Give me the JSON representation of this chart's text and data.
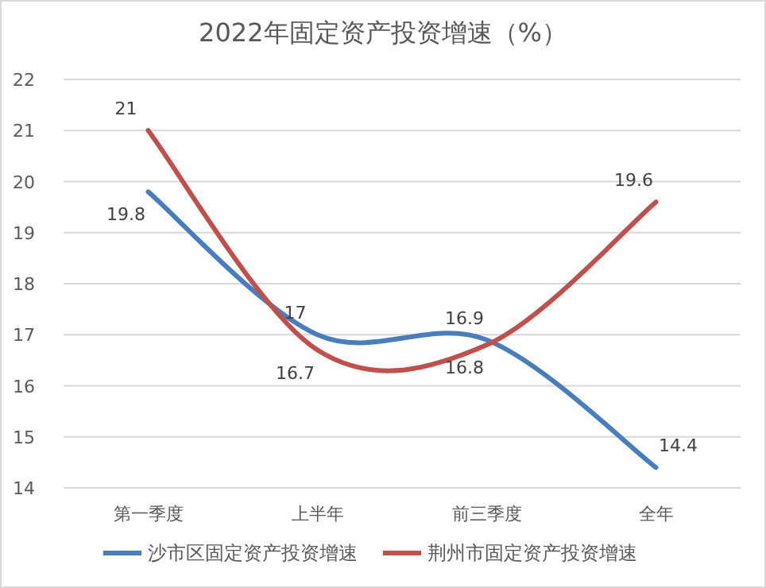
{
  "chart_data": {
    "type": "line",
    "title": "2022年固定资产投资增速（%）",
    "categories": [
      "第一季度",
      "上半年",
      "前三季度",
      "全年"
    ],
    "series": [
      {
        "name": "沙市区固定资产投资增速",
        "color": "#4a7ebb",
        "values": [
          19.8,
          17,
          16.9,
          14.4
        ]
      },
      {
        "name": "荆州市固定资产投资增速",
        "color": "#c0504d",
        "values": [
          21,
          16.7,
          16.8,
          19.6
        ]
      }
    ],
    "ylim": [
      14,
      22
    ],
    "yticks": [
      14,
      15,
      16,
      17,
      18,
      19,
      20,
      21,
      22
    ],
    "grid": "y",
    "legend": "bottom",
    "data_labels": true,
    "marker": "none"
  }
}
